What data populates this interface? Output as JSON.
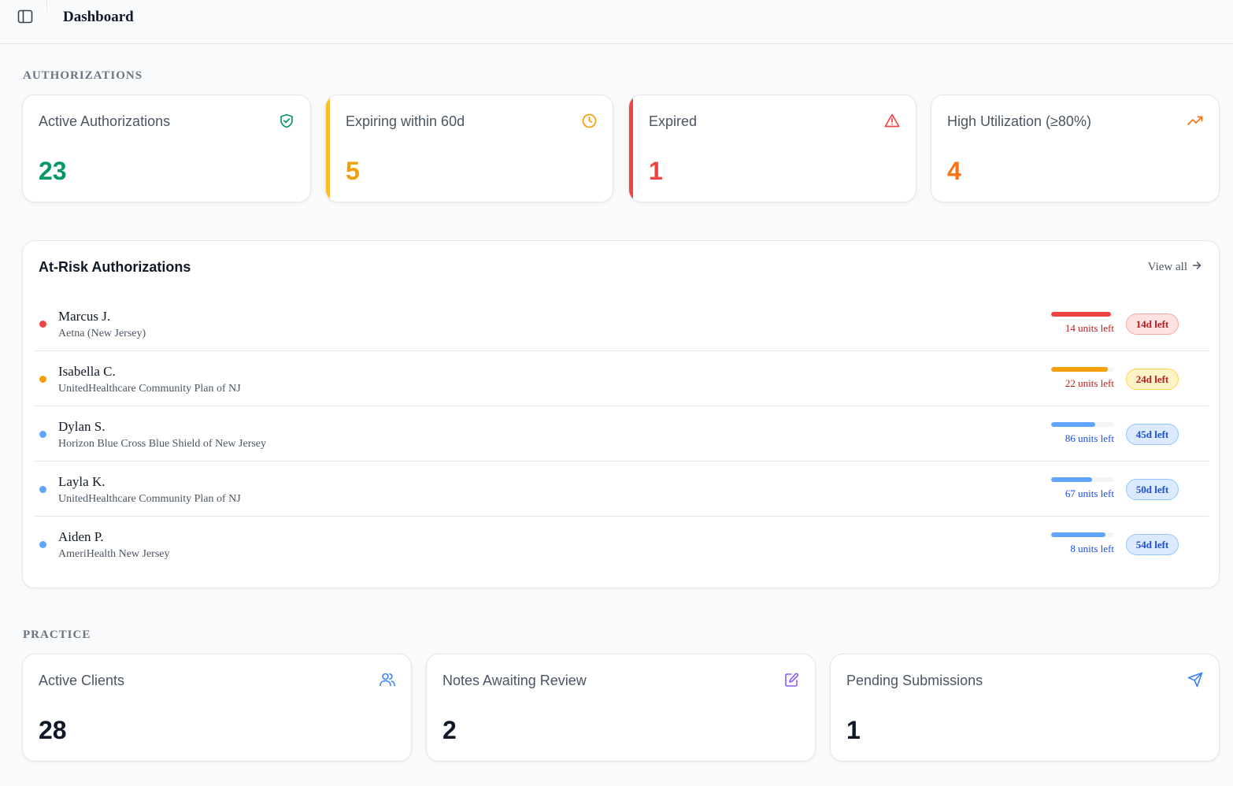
{
  "header": {
    "title": "Dashboard",
    "toggle_icon": "sidebar-toggle-icon"
  },
  "authorizations": {
    "section_label": "AUTHORIZATIONS",
    "cards": [
      {
        "title": "Active Authorizations",
        "value": "23",
        "icon": "shield-check-icon",
        "color": "#059669",
        "accent": ""
      },
      {
        "title": "Expiring within 60d",
        "value": "5",
        "icon": "clock-icon",
        "color": "#f59e0b",
        "accent": "#fbbf24"
      },
      {
        "title": "Expired",
        "value": "1",
        "icon": "alert-triangle-icon",
        "color": "#ef4444",
        "accent": "#ef4444"
      },
      {
        "title": "High Utilization (≥80%)",
        "value": "4",
        "icon": "trending-up-icon",
        "color": "#f97316",
        "accent": ""
      }
    ]
  },
  "at_risk": {
    "title": "At-Risk Authorizations",
    "view_all": "View all",
    "rows": [
      {
        "name": "Marcus J.",
        "payer": "Aetna (New Jersey)",
        "units": "14 units left",
        "days": "14d left",
        "utilization": 0.95,
        "dot": "#ef4444",
        "bar": "#ef4444",
        "text": "#b91c1c",
        "badge_bg": "#fee2e2",
        "badge_border": "#fca5a5"
      },
      {
        "name": "Isabella C.",
        "payer": "UnitedHealthcare Community Plan of NJ",
        "units": "22 units left",
        "days": "24d left",
        "utilization": 0.9,
        "dot": "#f59e0b",
        "bar": "#f59e0b",
        "text": "#b91c1c",
        "badge_bg": "#fef3c7",
        "badge_border": "#fcd34d"
      },
      {
        "name": "Dylan S.",
        "payer": "Horizon Blue Cross Blue Shield of New Jersey",
        "units": "86 units left",
        "days": "45d left",
        "utilization": 0.7,
        "dot": "#60a5fa",
        "bar": "#60a5fa",
        "text": "#1d4ed8",
        "badge_bg": "#dbeafe",
        "badge_border": "#93c5fd"
      },
      {
        "name": "Layla K.",
        "payer": "UnitedHealthcare Community Plan of NJ",
        "units": "67 units left",
        "days": "50d left",
        "utilization": 0.65,
        "dot": "#60a5fa",
        "bar": "#60a5fa",
        "text": "#1d4ed8",
        "badge_bg": "#dbeafe",
        "badge_border": "#93c5fd"
      },
      {
        "name": "Aiden P.",
        "payer": "AmeriHealth New Jersey",
        "units": "8 units left",
        "days": "54d left",
        "utilization": 0.86,
        "dot": "#60a5fa",
        "bar": "#60a5fa",
        "text": "#1d4ed8",
        "badge_bg": "#dbeafe",
        "badge_border": "#93c5fd"
      }
    ]
  },
  "practice": {
    "section_label": "PRACTICE",
    "cards": [
      {
        "title": "Active Clients",
        "value": "28",
        "icon": "users-icon",
        "color": "#3b82f6"
      },
      {
        "title": "Notes Awaiting Review",
        "value": "2",
        "icon": "edit-note-icon",
        "color": "#8b5cf6"
      },
      {
        "title": "Pending Submissions",
        "value": "1",
        "icon": "send-icon",
        "color": "#3b82f6"
      }
    ]
  }
}
